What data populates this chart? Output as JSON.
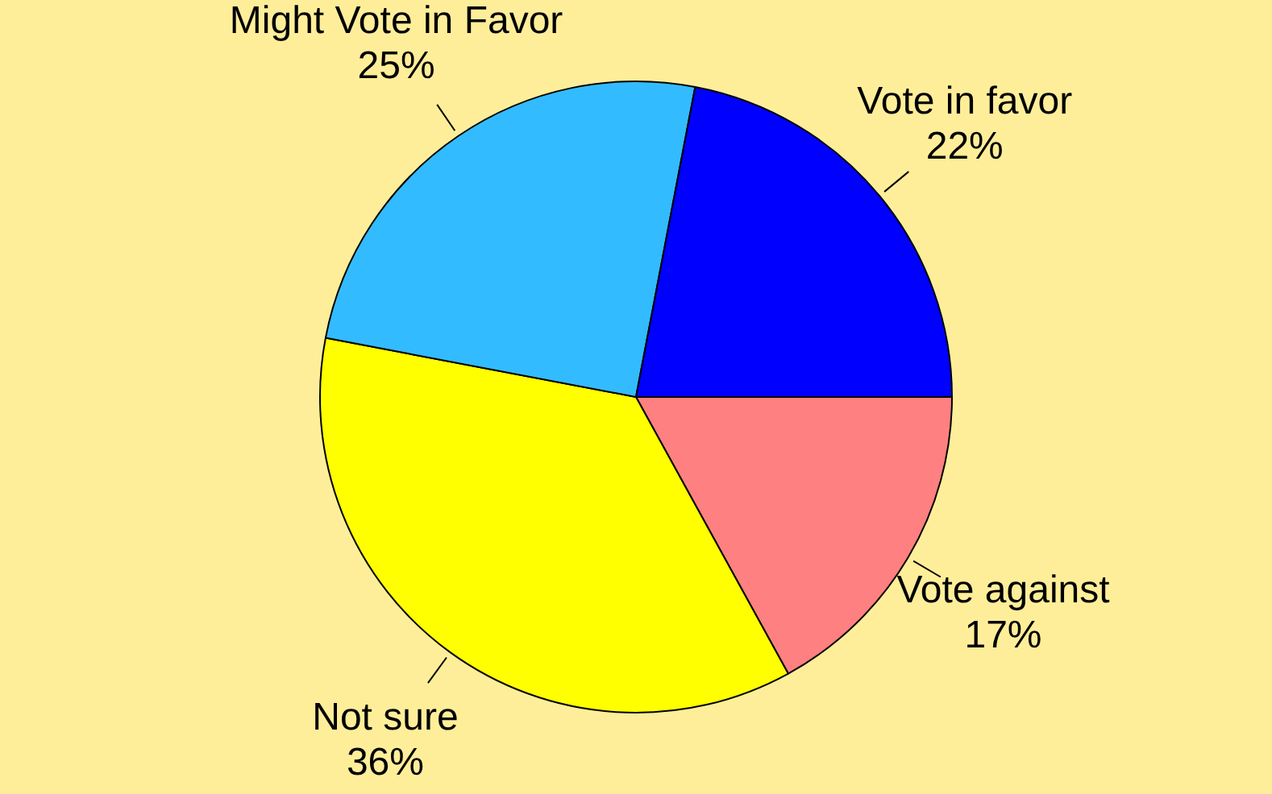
{
  "chart_data": {
    "type": "pie",
    "categories": [
      "Vote against",
      "Not sure",
      "Might Vote in Favor",
      "Vote in favor"
    ],
    "values": [
      17,
      36,
      25,
      22
    ],
    "value_labels": [
      "17%",
      "36%",
      "25%",
      "22%"
    ],
    "colors": [
      "#ff8080",
      "#ffff00",
      "#33bbff",
      "#0000ff"
    ],
    "legend": false
  }
}
